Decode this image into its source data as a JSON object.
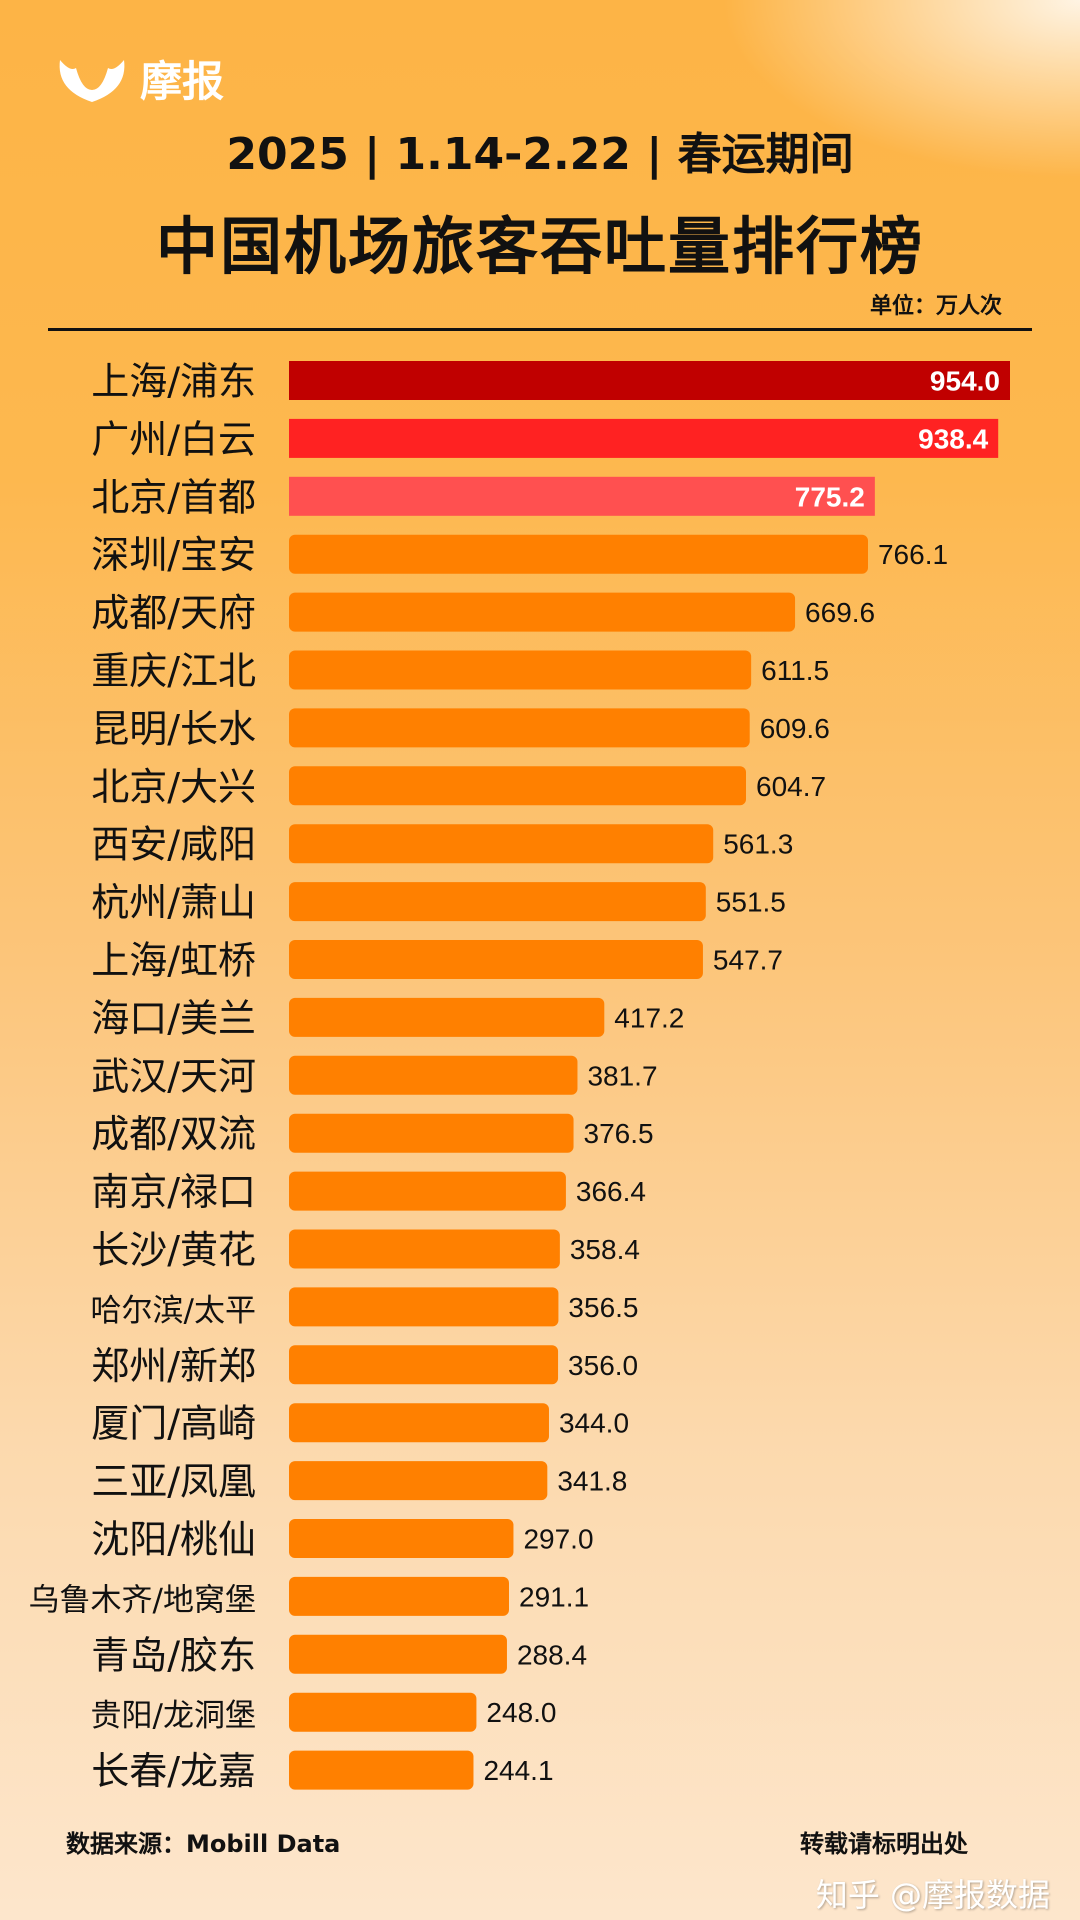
{
  "brand": {
    "logo_text": "摩报"
  },
  "header": {
    "subtitle": "2025 | 1.14-2.22 | 春运期间",
    "title": "中国机场旅客吞吐量排行榜",
    "unit": "单位：万人次"
  },
  "footer": {
    "source": "数据来源：Mobill Data",
    "repost_note": "转载请标明出处",
    "watermark": "知乎 @摩报数据"
  },
  "colors": {
    "rank1": "#c00000",
    "rank2": "#ff2222",
    "rank3": "#ff5050",
    "default": "#ff8000"
  },
  "chart_data": {
    "type": "bar",
    "orientation": "horizontal",
    "title": "中国机场旅客吞吐量排行榜",
    "unit": "万人次",
    "categories": [
      "上海/浦东",
      "广州/白云",
      "北京/首都",
      "深圳/宝安",
      "成都/天府",
      "重庆/江北",
      "昆明/长水",
      "北京/大兴",
      "西安/咸阳",
      "杭州/萧山",
      "上海/虹桥",
      "海口/美兰",
      "武汉/天河",
      "成都/双流",
      "南京/禄口",
      "长沙/黄花",
      "哈尔滨/太平",
      "郑州/新郑",
      "厦门/高崎",
      "三亚/凤凰",
      "沈阳/桃仙",
      "乌鲁木齐/地窝堡",
      "青岛/胶东",
      "贵阳/龙洞堡",
      "长春/龙嘉"
    ],
    "values": [
      954.0,
      938.4,
      775.2,
      766.1,
      669.6,
      611.5,
      609.6,
      604.7,
      561.3,
      551.5,
      547.7,
      417.2,
      381.7,
      376.5,
      366.4,
      358.4,
      356.5,
      356.0,
      344.0,
      341.8,
      297.0,
      291.1,
      288.4,
      248.0,
      244.1
    ],
    "value_labels": [
      "954.0",
      "938.4",
      "775.2",
      "766.1",
      "669.6",
      "611.5",
      "609.6",
      "604.7",
      "561.3",
      "551.5",
      "547.7",
      "417.2",
      "381.7",
      "376.5",
      "366.4",
      "358.4",
      "356.5",
      "356.0",
      "344.0",
      "341.8",
      "297.0",
      "291.1",
      "288.4",
      "248.0",
      "244.1"
    ],
    "grid": false,
    "legend": "none"
  }
}
